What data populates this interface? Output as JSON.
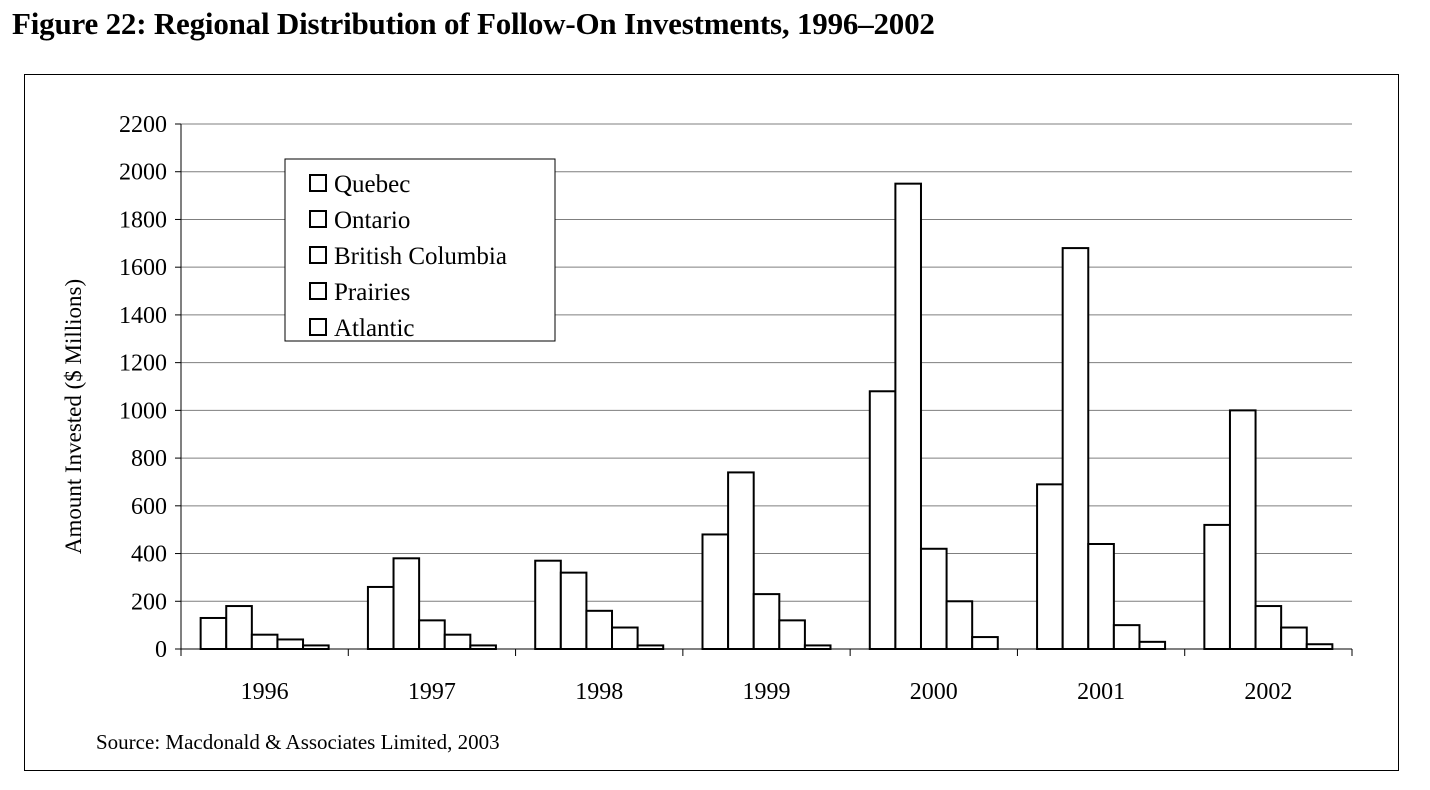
{
  "figure": {
    "title": "Figure 22: Regional Distribution of Follow-On Investments, 1996–2002",
    "source": "Source: Macdonald & Associates Limited, 2003"
  },
  "chart_data": {
    "type": "bar",
    "ylabel": "Amount Invested ($ Millions)",
    "xlabel": "",
    "ylim": [
      0,
      2200
    ],
    "yticks": [
      0,
      200,
      400,
      600,
      800,
      1000,
      1200,
      1400,
      1600,
      1800,
      2000,
      2200
    ],
    "grid": true,
    "legend": "top-left",
    "categories": [
      "1996",
      "1997",
      "1998",
      "1999",
      "2000",
      "2001",
      "2002"
    ],
    "series": [
      {
        "name": "Quebec",
        "values": [
          130,
          260,
          370,
          480,
          1080,
          690,
          520
        ]
      },
      {
        "name": "Ontario",
        "values": [
          180,
          380,
          320,
          740,
          1950,
          1680,
          1000
        ]
      },
      {
        "name": "British Columbia",
        "values": [
          60,
          120,
          160,
          230,
          420,
          440,
          180
        ]
      },
      {
        "name": "Prairies",
        "values": [
          40,
          60,
          90,
          120,
          200,
          100,
          90
        ]
      },
      {
        "name": "Atlantic",
        "values": [
          15,
          15,
          15,
          15,
          50,
          30,
          20
        ]
      }
    ],
    "colors": {
      "bar_fill": "#ffffff",
      "bar_stroke": "#000000",
      "grid": "#7f7f7f"
    }
  }
}
